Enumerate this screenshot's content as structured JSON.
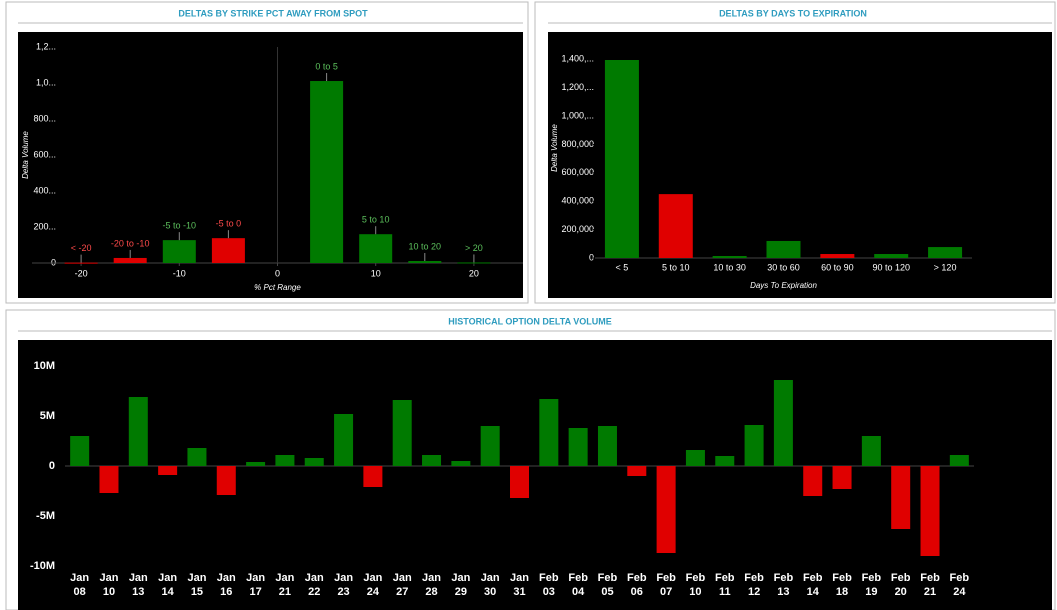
{
  "chart_data": [
    {
      "type": "bar",
      "title": "DELTAS BY STRIKE PCT AWAY FROM SPOT",
      "x": [
        -20,
        -15,
        -10,
        -5,
        5,
        10,
        15,
        20
      ],
      "values": [
        2,
        28,
        127,
        138,
        1011,
        160,
        11,
        3
      ],
      "point_labels": [
        "< -20",
        "-20 to -10",
        "-5 to -10",
        "-5 to 0",
        "0 to 5",
        "5 to 10",
        "10 to 20",
        "> 20"
      ],
      "colors": [
        "#e00000",
        "#e00000",
        "#007a00",
        "#e00000",
        "#007a00",
        "#007a00",
        "#007a00",
        "#007a00"
      ],
      "xlim": [
        -25,
        25
      ],
      "xticks": [
        -20,
        -10,
        0,
        10,
        20
      ],
      "ylim": [
        0,
        1200
      ],
      "yticks": [
        0,
        {
          "value": 200,
          "label": "200..."
        },
        {
          "value": 400,
          "label": "400..."
        },
        {
          "value": 600,
          "label": "600..."
        },
        {
          "value": 800,
          "label": "800..."
        },
        {
          "value": 1000,
          "label": "1,0..."
        },
        {
          "value": 1200,
          "label": "1,2..."
        }
      ],
      "x_label": "% Pct Range",
      "y_label": "Delta Volume"
    },
    {
      "type": "bar",
      "title": "DELTAS BY DAYS TO EXPIRATION",
      "categories": [
        "< 5",
        "5 to 10",
        "10 to 30",
        "30 to 60",
        "60 to 90",
        "90 to 120",
        "> 120"
      ],
      "values": [
        1395000,
        450000,
        14000,
        120000,
        28000,
        28000,
        77000
      ],
      "colors": [
        "#007a00",
        "#e00000",
        "#007a00",
        "#007a00",
        "#e00000",
        "#007a00",
        "#007a00"
      ],
      "ylim": [
        0,
        1550000
      ],
      "yticks": [
        0,
        {
          "value": 200000,
          "label": "200,000"
        },
        {
          "value": 400000,
          "label": "400,000"
        },
        {
          "value": 600000,
          "label": "600,000"
        },
        {
          "value": 800000,
          "label": "800,000"
        },
        {
          "value": 1000000,
          "label": "1,000,..."
        },
        {
          "value": 1200000,
          "label": "1,200,..."
        },
        {
          "value": 1400000,
          "label": "1,400,..."
        }
      ],
      "x_label": "Days To Expiration",
      "y_label": "Delta Volume"
    },
    {
      "type": "bar",
      "title": "HISTORICAL OPTION DELTA VOLUME",
      "categories": [
        [
          "Jan",
          "08"
        ],
        [
          "Jan",
          "10"
        ],
        [
          "Jan",
          "13"
        ],
        [
          "Jan",
          "14"
        ],
        [
          "Jan",
          "15"
        ],
        [
          "Jan",
          "16"
        ],
        [
          "Jan",
          "17"
        ],
        [
          "Jan",
          "21"
        ],
        [
          "Jan",
          "22"
        ],
        [
          "Jan",
          "23"
        ],
        [
          "Jan",
          "24"
        ],
        [
          "Jan",
          "27"
        ],
        [
          "Jan",
          "28"
        ],
        [
          "Jan",
          "29"
        ],
        [
          "Jan",
          "30"
        ],
        [
          "Jan",
          "31"
        ],
        [
          "Feb",
          "03"
        ],
        [
          "Feb",
          "04"
        ],
        [
          "Feb",
          "05"
        ],
        [
          "Feb",
          "06"
        ],
        [
          "Feb",
          "07"
        ],
        [
          "Feb",
          "10"
        ],
        [
          "Feb",
          "11"
        ],
        [
          "Feb",
          "12"
        ],
        [
          "Feb",
          "13"
        ],
        [
          "Feb",
          "14"
        ],
        [
          "Feb",
          "18"
        ],
        [
          "Feb",
          "19"
        ],
        [
          "Feb",
          "20"
        ],
        [
          "Feb",
          "21"
        ],
        [
          "Feb",
          "24"
        ]
      ],
      "values": [
        3000000,
        -2700000,
        6900000,
        -900000,
        1800000,
        -2900000,
        400000,
        1100000,
        800000,
        5200000,
        -2100000,
        6600000,
        1100000,
        500000,
        4000000,
        -3200000,
        6700000,
        3800000,
        4000000,
        -1000000,
        -8700000,
        1600000,
        1000000,
        4100000,
        8600000,
        -3000000,
        -2300000,
        3000000,
        -6300000,
        -9000000,
        1100000
      ],
      "positive_color": "#007a00",
      "negative_color": "#e00000",
      "ylim": [
        -10500000,
        12000000
      ],
      "yticks": [
        {
          "value": -10000000,
          "label": "-10M"
        },
        {
          "value": -5000000,
          "label": "-5M"
        },
        0,
        {
          "value": 5000000,
          "label": "5M"
        },
        {
          "value": 10000000,
          "label": "10M"
        }
      ]
    }
  ]
}
